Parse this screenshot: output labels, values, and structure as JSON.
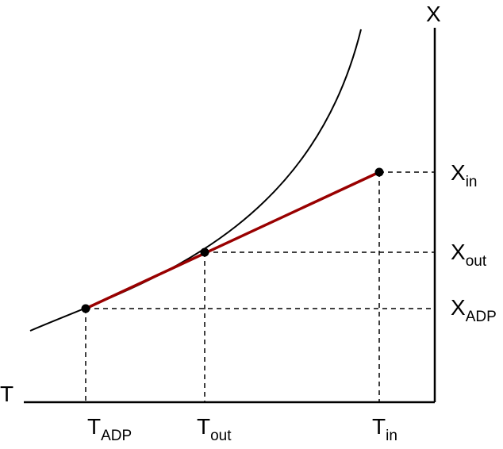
{
  "axes": {
    "x_label": "T",
    "y_label": "X"
  },
  "points": {
    "adp": {
      "t_main": "T",
      "t_sub": "ADP",
      "x_main": "X",
      "x_sub": "ADP"
    },
    "out": {
      "t_main": "T",
      "t_sub": "out",
      "x_main": "X",
      "x_sub": "out"
    },
    "in": {
      "t_main": "T",
      "t_sub": "in",
      "x_main": "X",
      "x_sub": "in"
    }
  },
  "colors": {
    "process_line": "#990000",
    "curve": "#000000",
    "axis": "#000000"
  }
}
